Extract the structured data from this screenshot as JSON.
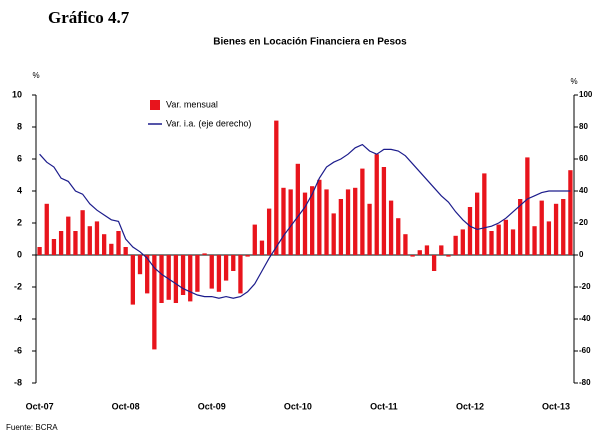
{
  "chart_data": {
    "type": "bar_line",
    "title": "Gráfico 4.7",
    "subtitle": "Bienes en Locación Financiera en Pesos",
    "y_unit": "%",
    "y2_unit": "%",
    "source": "Fuente: BCRA",
    "categories": [
      "Oct-07",
      null,
      null,
      null,
      null,
      null,
      null,
      null,
      null,
      null,
      null,
      null,
      "Oct-08",
      null,
      null,
      null,
      null,
      null,
      null,
      null,
      null,
      null,
      null,
      null,
      "Oct-09",
      null,
      null,
      null,
      null,
      null,
      null,
      null,
      null,
      null,
      null,
      null,
      "Oct-10",
      null,
      null,
      null,
      null,
      null,
      null,
      null,
      null,
      null,
      null,
      null,
      "Oct-11",
      null,
      null,
      null,
      null,
      null,
      null,
      null,
      null,
      null,
      null,
      null,
      "Oct-12",
      null,
      null,
      null,
      null,
      null,
      null,
      null,
      null,
      null,
      null,
      null,
      "Oct-13",
      null,
      null
    ],
    "series": [
      {
        "name": "Var. mensual",
        "color": "#e8141c",
        "kind": "bar",
        "values": [
          0.5,
          3.2,
          1.0,
          1.5,
          2.4,
          1.5,
          2.8,
          1.8,
          2.1,
          1.3,
          0.7,
          1.5,
          0.5,
          -3.1,
          -1.2,
          -2.4,
          -5.9,
          -3.0,
          -2.8,
          -3.0,
          -2.5,
          -2.9,
          -2.3,
          0.1,
          -2.1,
          -2.3,
          -1.6,
          -1.0,
          -2.4,
          -0.1,
          1.9,
          0.9,
          2.9,
          8.4,
          4.2,
          4.1,
          5.7,
          3.9,
          4.3,
          4.7,
          4.1,
          2.6,
          3.5,
          4.1,
          4.2,
          5.4,
          3.2,
          6.3,
          5.5,
          3.4,
          2.3,
          1.3,
          -0.1,
          0.3,
          0.6,
          -1.0,
          0.6,
          -0.1,
          1.2,
          1.6,
          3.0,
          3.9,
          5.1,
          1.5,
          1.9,
          2.2,
          1.6,
          3.5,
          6.1,
          1.8,
          3.4,
          2.1,
          3.2,
          3.5,
          5.3
        ]
      },
      {
        "name": "Var. i.a. (eje derecho)",
        "color": "#1c1c8c",
        "kind": "line",
        "axis": "y2",
        "values": [
          63,
          58,
          55,
          48,
          46,
          40,
          38,
          32,
          28,
          25,
          22,
          21,
          10,
          5,
          2,
          -2,
          -8,
          -12,
          -15,
          -18,
          -21,
          -23,
          -25,
          -26,
          -26,
          -27,
          -26,
          -27,
          -26,
          -23,
          -18,
          -10,
          -2,
          5,
          12,
          18,
          24,
          30,
          38,
          48,
          55,
          58,
          60,
          63,
          67,
          69,
          65,
          63,
          66,
          66,
          65,
          62,
          57,
          52,
          47,
          42,
          37,
          33,
          27,
          22,
          18,
          16,
          17,
          18,
          20,
          23,
          27,
          31,
          35,
          37,
          39,
          40,
          40,
          40,
          40
        ]
      }
    ],
    "ylim": [
      -8,
      10
    ],
    "yticks": [
      10,
      8,
      6,
      4,
      2,
      0,
      -2,
      -4,
      -6,
      -8
    ],
    "y2lim": [
      -80,
      100
    ],
    "y2ticks": [
      100,
      80,
      60,
      40,
      20,
      0,
      -20,
      -40,
      -60,
      -80
    ]
  }
}
